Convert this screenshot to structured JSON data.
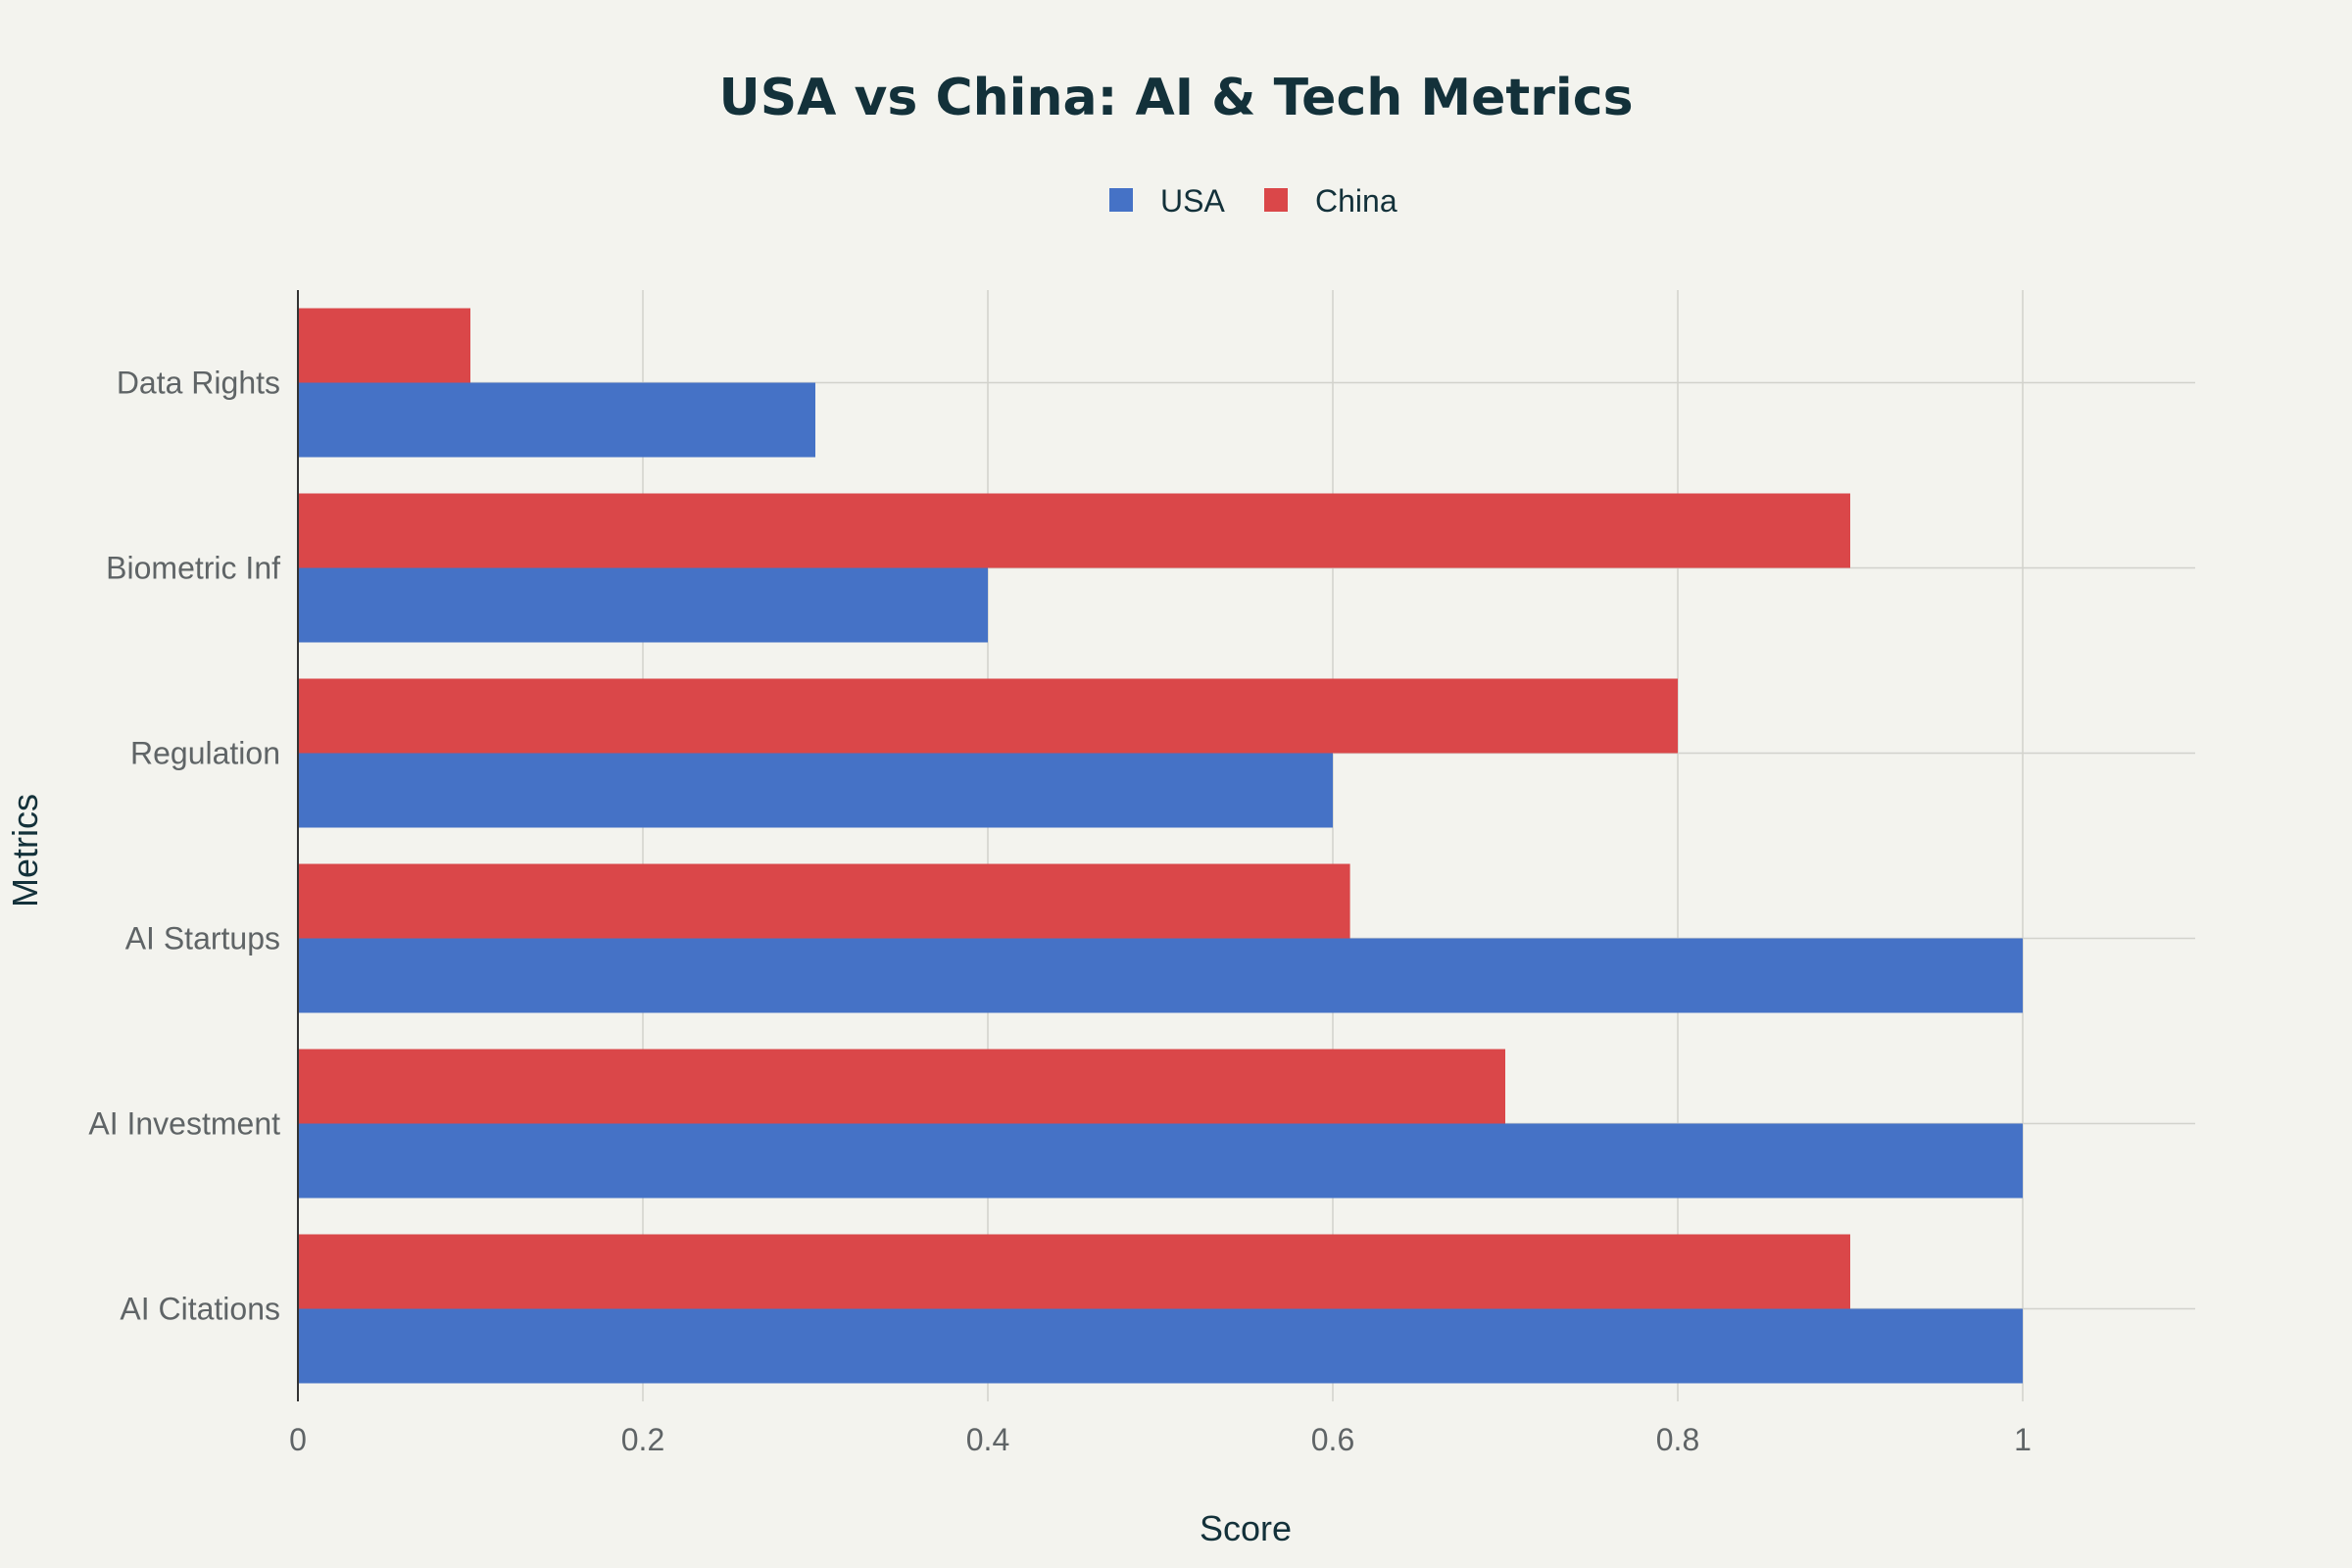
{
  "chart_data": {
    "type": "bar",
    "orientation": "horizontal",
    "title": "USA vs China: AI & Tech Metrics",
    "xlabel": "Score",
    "ylabel": "Metrics",
    "categories": [
      "AI Citations",
      "AI Investment",
      "AI Startups",
      "Regulation",
      "Biometric Inf",
      "Data Rights"
    ],
    "series": [
      {
        "name": "USA",
        "color": "#4572c6",
        "values": [
          1.0,
          1.0,
          1.0,
          0.6,
          0.4,
          0.3
        ]
      },
      {
        "name": "China",
        "color": "#da4749",
        "values": [
          0.9,
          0.7,
          0.61,
          0.8,
          0.9,
          0.1
        ]
      }
    ],
    "xlim": [
      0,
      1.1
    ],
    "xticks": [
      0,
      0.2,
      0.4,
      0.6,
      0.8,
      1
    ],
    "xtick_labels": [
      "0",
      "0.2",
      "0.4",
      "0.6",
      "0.8",
      "1"
    ],
    "grid": true,
    "legend_position": "top-center"
  }
}
